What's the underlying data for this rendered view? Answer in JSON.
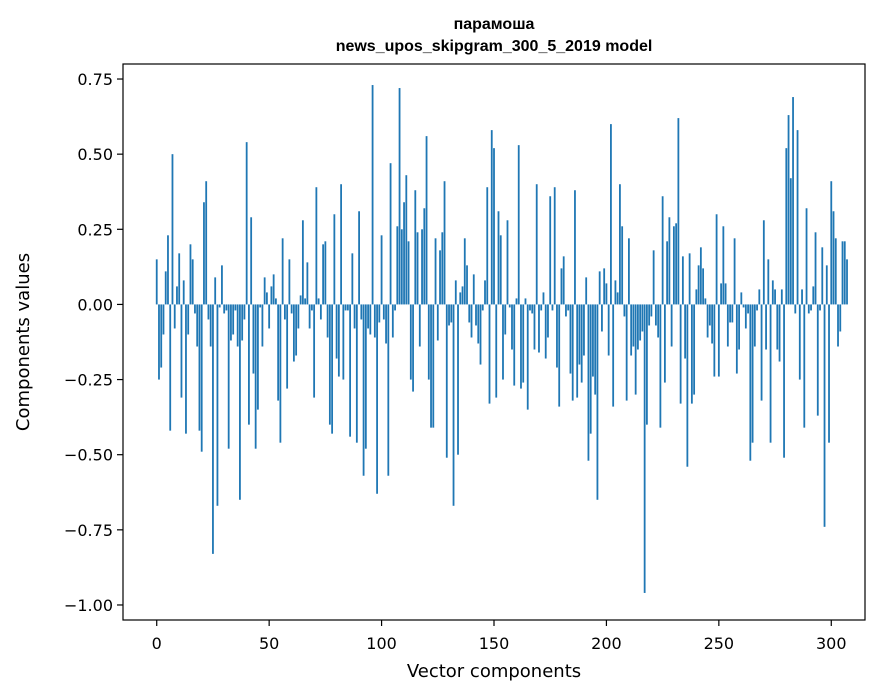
{
  "chart_data": {
    "type": "bar",
    "title": "парамоша",
    "subtitle": "news_upos_skipgram_300_5_2019 model",
    "xlabel": "Vector components",
    "ylabel": "Components values",
    "xlim": [
      -15,
      315
    ],
    "ylim": [
      -1.05,
      0.8
    ],
    "xticks": [
      0,
      50,
      100,
      150,
      200,
      250,
      300
    ],
    "xtick_labels": [
      "0",
      "50",
      "100",
      "150",
      "200",
      "250",
      "300"
    ],
    "yticks": [
      0.75,
      0.5,
      0.25,
      0.0,
      -0.25,
      -0.5,
      -0.75,
      -1.0
    ],
    "ytick_labels": [
      "0.75",
      "0.50",
      "0.25",
      "0.00",
      "−0.25",
      "−0.50",
      "−0.75",
      "−1.00"
    ],
    "grid": false,
    "bar_color": "#1f77b4",
    "values": [
      0.15,
      -0.25,
      -0.21,
      -0.1,
      0.11,
      0.23,
      -0.42,
      0.5,
      -0.08,
      0.06,
      0.17,
      -0.31,
      0.08,
      -0.43,
      -0.1,
      0.2,
      0.15,
      -0.03,
      -0.14,
      -0.42,
      -0.49,
      0.34,
      0.41,
      -0.05,
      -0.14,
      -0.83,
      0.09,
      -0.67,
      -0.01,
      0.13,
      -0.03,
      -0.02,
      -0.48,
      -0.12,
      -0.1,
      -0.02,
      -0.14,
      -0.65,
      -0.12,
      -0.05,
      0.54,
      -0.4,
      0.29,
      -0.23,
      -0.48,
      -0.35,
      -0.01,
      -0.14,
      0.09,
      0.04,
      -0.08,
      0.06,
      0.1,
      0.02,
      -0.32,
      -0.46,
      0.22,
      -0.05,
      -0.28,
      0.15,
      -0.03,
      -0.19,
      -0.17,
      -0.08,
      0.03,
      0.28,
      0.02,
      0.14,
      -0.08,
      -0.02,
      -0.31,
      0.39,
      0.02,
      -0.05,
      0.2,
      0.21,
      -0.11,
      -0.4,
      -0.43,
      0.3,
      -0.18,
      -0.24,
      0.4,
      -0.25,
      -0.02,
      -0.02,
      -0.44,
      0.17,
      -0.08,
      -0.46,
      0.31,
      -0.05,
      -0.57,
      -0.48,
      -0.08,
      -0.1,
      0.73,
      -0.11,
      -0.63,
      -0.06,
      0.23,
      -0.05,
      -0.13,
      -0.57,
      0.47,
      -0.11,
      -0.02,
      0.26,
      0.72,
      0.25,
      0.34,
      0.43,
      0.21,
      -0.25,
      -0.29,
      0.38,
      0.24,
      -0.14,
      0.25,
      0.32,
      0.56,
      -0.25,
      -0.41,
      -0.41,
      0.22,
      -0.12,
      0.18,
      0.24,
      0.41,
      -0.51,
      -0.07,
      -0.06,
      -0.67,
      0.08,
      -0.5,
      0.04,
      0.06,
      0.22,
      0.13,
      -0.06,
      -0.11,
      0.1,
      -0.07,
      -0.13,
      -0.2,
      -0.02,
      0.08,
      0.39,
      -0.33,
      0.58,
      0.52,
      -0.31,
      0.31,
      0.23,
      -0.25,
      -0.1,
      0.28,
      -0.01,
      -0.15,
      -0.27,
      0.02,
      0.53,
      -0.28,
      -0.26,
      0.02,
      -0.35,
      -0.02,
      -0.03,
      -0.15,
      0.4,
      -0.16,
      -0.02,
      0.04,
      -0.18,
      -0.11,
      0.36,
      -0.02,
      0.39,
      -0.21,
      -0.34,
      0.12,
      0.16,
      -0.04,
      -0.02,
      -0.23,
      -0.32,
      0.38,
      -0.31,
      -0.2,
      -0.26,
      -0.17,
      0.09,
      -0.52,
      -0.43,
      -0.24,
      -0.3,
      -0.65,
      0.11,
      -0.09,
      0.12,
      0.07,
      -0.17,
      0.6,
      -0.34,
      0.08,
      0.04,
      0.4,
      0.26,
      -0.04,
      -0.32,
      0.22,
      -0.17,
      -0.14,
      -0.3,
      -0.15,
      -0.12,
      -0.09,
      -0.96,
      -0.4,
      -0.07,
      -0.04,
      0.18,
      -0.07,
      -0.11,
      -0.41,
      0.36,
      -0.26,
      0.21,
      0.29,
      -0.14,
      0.26,
      0.27,
      0.62,
      -0.33,
      0.16,
      -0.18,
      -0.54,
      0.17,
      -0.33,
      -0.3,
      0.05,
      0.13,
      0.19,
      0.12,
      0.02,
      -0.11,
      -0.07,
      -0.13,
      -0.24,
      0.3,
      -0.24,
      0.07,
      0.26,
      0.07,
      -0.14,
      -0.06,
      -0.06,
      0.22,
      -0.23,
      -0.15,
      0.04,
      -0.01,
      -0.08,
      -0.03,
      -0.52,
      -0.46,
      -0.14,
      -0.02,
      0.05,
      -0.32,
      0.28,
      -0.15,
      0.15,
      -0.46,
      0.08,
      0.05,
      -0.15,
      -0.19,
      0.05,
      -0.51,
      0.52,
      0.63,
      0.42,
      0.69,
      -0.03,
      0.58,
      -0.25,
      0.05,
      -0.41,
      0.32,
      -0.03,
      -0.02,
      0.06,
      0.24,
      -0.37,
      -0.02,
      0.19,
      -0.74,
      0.13,
      -0.46,
      0.41,
      0.31,
      0.22,
      -0.14,
      -0.09,
      0.21,
      0.21,
      0.15
    ]
  }
}
